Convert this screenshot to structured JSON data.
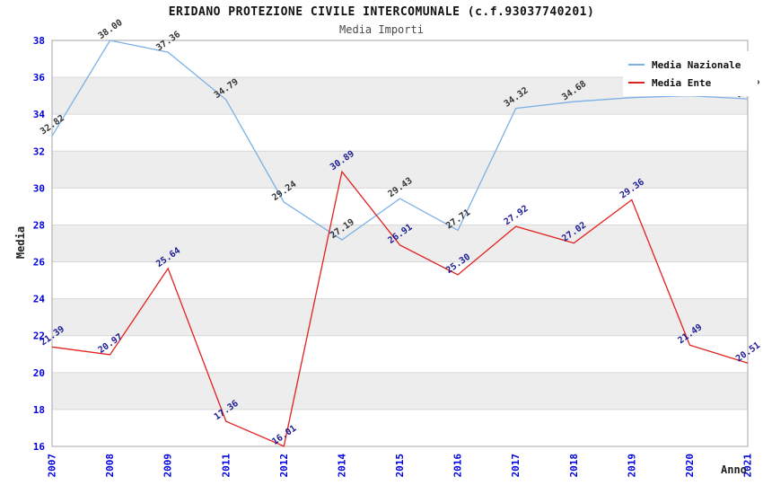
{
  "chart_data": {
    "type": "line",
    "title": "ERIDANO PROTEZIONE CIVILE INTERCOMUNALE (c.f.93037740201)",
    "subtitle": "Media Importi",
    "xlabel": "Anno",
    "ylabel": "Media",
    "ylim": [
      16,
      38
    ],
    "ytick_step": 2,
    "ytick_labels": [
      "16",
      "18",
      "20",
      "22",
      "24",
      "26",
      "28",
      "30",
      "32",
      "34",
      "36",
      "38"
    ],
    "categories": [
      "2007",
      "2008",
      "2009",
      "2011",
      "2012",
      "2014",
      "2015",
      "2016",
      "2017",
      "2018",
      "2019",
      "2020",
      "2021"
    ],
    "legend_position": "top-right",
    "grid": "horizontal-stripes",
    "series": [
      {
        "name": "Media Nazionale",
        "color": "#7cb0e6",
        "label_color": "#333333",
        "values": [
          32.82,
          38.0,
          37.36,
          34.79,
          29.24,
          27.19,
          29.43,
          27.71,
          34.32,
          34.68,
          34.9,
          35.0,
          34.83
        ],
        "labels": [
          "32.82",
          "38.00",
          "37.36",
          "34.79",
          "29.24",
          "27.19",
          "29.43",
          "27.71",
          "34.32",
          "34.68",
          "",
          "",
          "34.83"
        ]
      },
      {
        "name": "Media Ente",
        "color": "#e12120",
        "label_color": "#1a1a96",
        "values": [
          21.39,
          20.97,
          25.64,
          17.36,
          16.01,
          30.89,
          26.91,
          25.3,
          27.92,
          27.02,
          29.36,
          21.49,
          20.51
        ],
        "labels": [
          "21.39",
          "20.97",
          "25.64",
          "17.36",
          "16.01",
          "30.89",
          "26.91",
          "25.30",
          "27.92",
          "27.02",
          "29.36",
          "21.49",
          "20.51"
        ]
      }
    ],
    "colors": {
      "tick_label": "#0000dd",
      "stripe": "#ededed",
      "gridline": "#d8d8d8",
      "plot_border": "#a6a6a6",
      "title": "#111111",
      "subtitle": "#4a4a4a"
    }
  }
}
